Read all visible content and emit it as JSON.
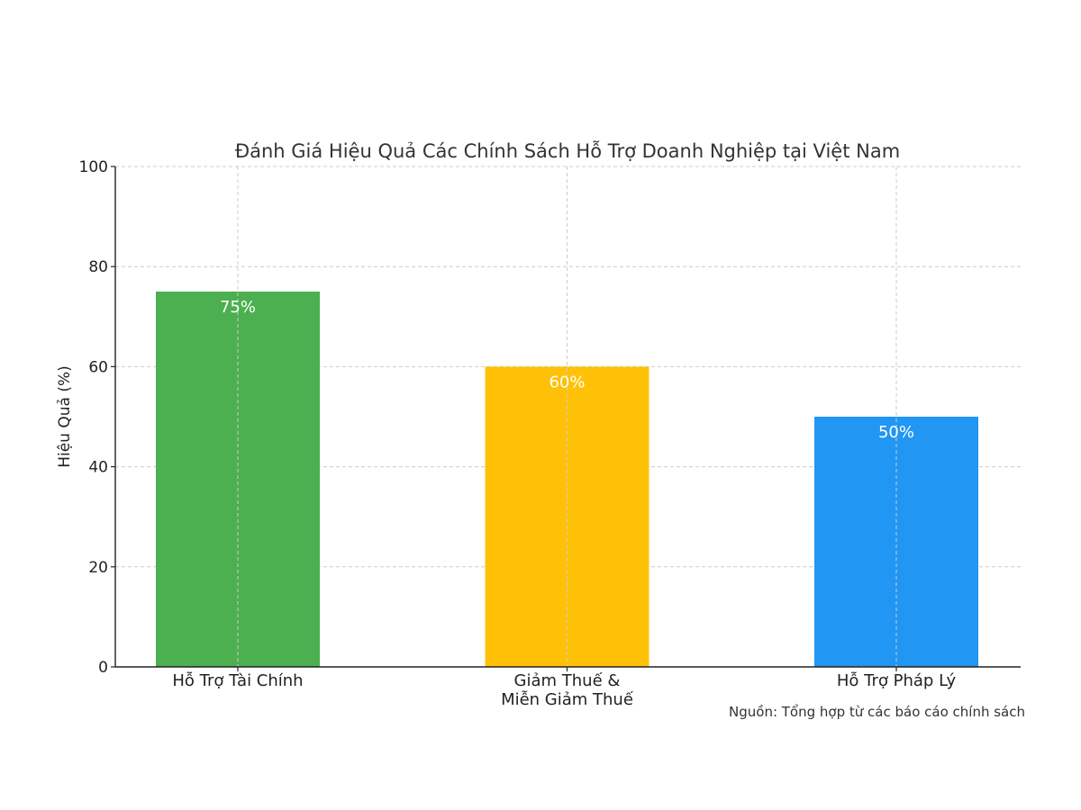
{
  "chart_data": {
    "type": "bar",
    "title": "Đánh Giá Hiệu Quả Các Chính Sách Hỗ Trợ Doanh Nghiệp tại Việt Nam",
    "xlabel": "",
    "ylabel": "Hiệu Quả (%)",
    "ylim": [
      0,
      100
    ],
    "yticks": [
      0,
      20,
      40,
      60,
      80,
      100
    ],
    "ytick_labels": [
      "0",
      "20",
      "40",
      "60",
      "80",
      "100"
    ],
    "categories": [
      "Hỗ Trợ Tài Chính",
      "Giảm Thuế & Miễn Giảm Thuế",
      "Hỗ Trợ Pháp Lý"
    ],
    "category_label_lines": [
      [
        "Hỗ Trợ Tài Chính"
      ],
      [
        "Giảm Thuế &",
        "Miễn Giảm Thuế"
      ],
      [
        "Hỗ Trợ Pháp Lý"
      ]
    ],
    "values": [
      75,
      60,
      50
    ],
    "data_labels": [
      "75%",
      "60%",
      "50%"
    ],
    "colors": [
      "#4caf50",
      "#ffc107",
      "#2196f3"
    ],
    "grid": true,
    "source_note": "Nguồn: Tổng hợp từ các báo cáo chính sách"
  }
}
